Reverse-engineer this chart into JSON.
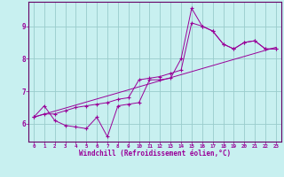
{
  "xlabel": "Windchill (Refroidissement éolien,°C)",
  "bg_color": "#c8f0f0",
  "line_color": "#990099",
  "grid_color": "#99cccc",
  "axis_color": "#660066",
  "xlim": [
    -0.5,
    23.5
  ],
  "ylim": [
    5.45,
    9.75
  ],
  "xticks": [
    0,
    1,
    2,
    3,
    4,
    5,
    6,
    7,
    8,
    9,
    10,
    11,
    12,
    13,
    14,
    15,
    16,
    17,
    18,
    19,
    20,
    21,
    22,
    23
  ],
  "yticks": [
    6,
    7,
    8,
    9
  ],
  "line1_x": [
    0,
    1,
    2,
    3,
    4,
    5,
    6,
    7,
    8,
    9,
    10,
    11,
    12,
    13,
    14,
    15,
    16,
    17,
    18,
    19,
    20,
    21,
    22,
    23
  ],
  "line1_y": [
    6.2,
    6.55,
    6.1,
    5.95,
    5.9,
    5.85,
    6.2,
    5.6,
    6.55,
    6.6,
    6.65,
    7.35,
    7.35,
    7.4,
    8.0,
    9.55,
    9.0,
    8.85,
    8.45,
    8.3,
    8.5,
    8.55,
    8.3,
    8.3
  ],
  "line2_x": [
    0,
    1,
    2,
    3,
    4,
    5,
    6,
    7,
    8,
    9,
    10,
    11,
    12,
    13,
    14,
    15,
    16,
    17,
    18,
    19,
    20,
    21,
    22,
    23
  ],
  "line2_y": [
    6.2,
    6.3,
    6.3,
    6.4,
    6.5,
    6.55,
    6.6,
    6.65,
    6.75,
    6.8,
    7.35,
    7.4,
    7.45,
    7.55,
    7.65,
    9.1,
    9.0,
    8.85,
    8.45,
    8.3,
    8.5,
    8.55,
    8.3,
    8.3
  ],
  "trend_x": [
    0,
    23
  ],
  "trend_y": [
    6.2,
    8.35
  ]
}
